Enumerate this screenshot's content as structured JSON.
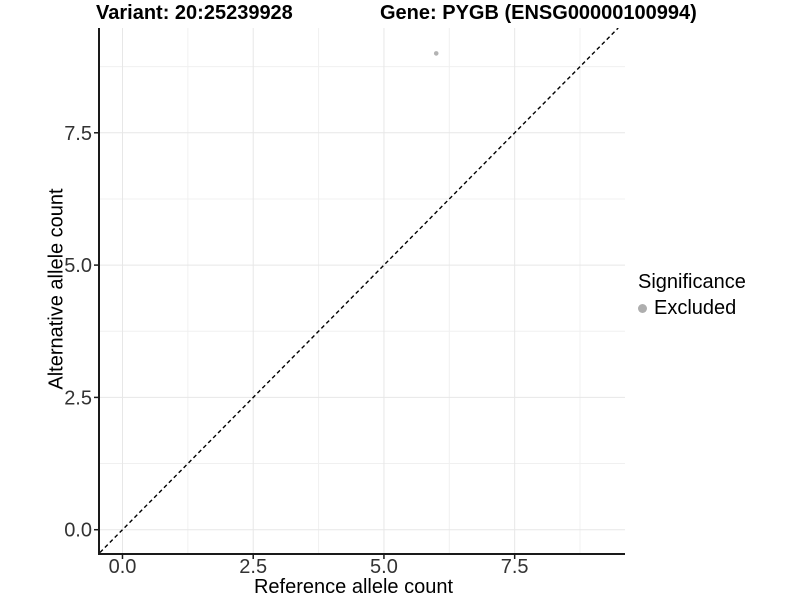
{
  "header": {
    "title_left": "Variant: 20:25239928",
    "title_right": "Gene: PYGB (ENSG00000100994)"
  },
  "legend": {
    "title": "Significance",
    "items": [
      {
        "label": "Excluded",
        "color": "#aeaeae"
      }
    ]
  },
  "chart_data": {
    "type": "scatter",
    "title": "Variant: 20:25239928   Gene: PYGB (ENSG00000100994)",
    "xlabel": "Reference allele count",
    "ylabel": "Alternative allele count",
    "xlim": [
      -0.43,
      9.61
    ],
    "ylim": [
      -0.44,
      9.48
    ],
    "x_major_ticks": [
      {
        "value": 0,
        "label": "0.0"
      },
      {
        "value": 2.5,
        "label": "2.5"
      },
      {
        "value": 5,
        "label": "5.0"
      },
      {
        "value": 7.5,
        "label": "7.5"
      }
    ],
    "y_major_ticks": [
      {
        "value": 0,
        "label": "0.0"
      },
      {
        "value": 2.5,
        "label": "2.5"
      },
      {
        "value": 5,
        "label": "5.0"
      },
      {
        "value": 7.5,
        "label": "7.5"
      }
    ],
    "x_minor_ticks": [
      1.25,
      3.75,
      6.25,
      8.75
    ],
    "y_minor_ticks": [
      1.25,
      3.75,
      6.25,
      8.75
    ],
    "grid": {
      "show": true,
      "major_color": "#e7e7e7",
      "minor_color": "#f0f0f0"
    },
    "axis_color": "#1a1a1a",
    "tick_label_color": "#333333",
    "identity_line": {
      "slope": 1,
      "intercept": 0,
      "style": "dashed",
      "color": "#000000"
    },
    "series": [
      {
        "name": "Excluded",
        "color": "#b3b3b3",
        "point_radius": 2.3,
        "points": [
          {
            "x": 6,
            "y": 9
          }
        ]
      }
    ],
    "legend": {
      "title": "Significance",
      "position": "right",
      "entries": [
        "Excluded"
      ]
    }
  }
}
